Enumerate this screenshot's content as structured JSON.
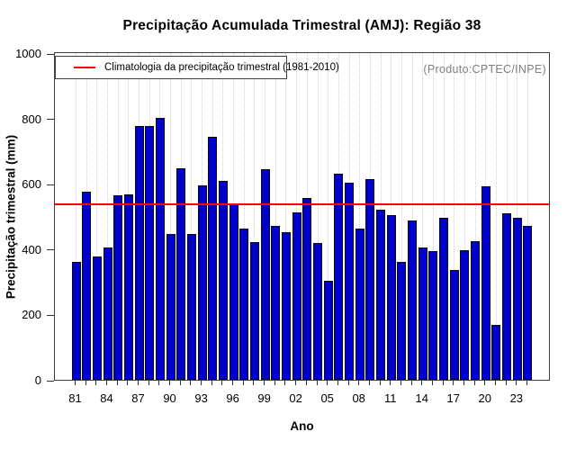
{
  "chart_data": {
    "type": "bar",
    "title": "Precipitação Acumulada Trimestral (AMJ): Região 38",
    "xlabel": "Ano",
    "ylabel": "Precipitação trimestral (mm)",
    "ylim": [
      0,
      1000
    ],
    "y_ticks": [
      0,
      200,
      400,
      600,
      800,
      1000
    ],
    "x_tick_labels": [
      "81",
      "84",
      "87",
      "90",
      "93",
      "96",
      "99",
      "02",
      "05",
      "08",
      "11",
      "14",
      "17",
      "20",
      "23"
    ],
    "categories": [
      "1981",
      "1982",
      "1983",
      "1984",
      "1985",
      "1986",
      "1987",
      "1988",
      "1989",
      "1990",
      "1991",
      "1992",
      "1993",
      "1994",
      "1995",
      "1996",
      "1997",
      "1998",
      "1999",
      "2000",
      "2001",
      "2002",
      "2003",
      "2004",
      "2005",
      "2006",
      "2007",
      "2008",
      "2009",
      "2010",
      "2011",
      "2012",
      "2013",
      "2014",
      "2015",
      "2016",
      "2017",
      "2018",
      "2019",
      "2020",
      "2021",
      "2022",
      "2023",
      "2024"
    ],
    "values": [
      362,
      575,
      378,
      406,
      564,
      567,
      777,
      777,
      802,
      447,
      648,
      447,
      596,
      743,
      608,
      538,
      464,
      422,
      645,
      472,
      453,
      512,
      557,
      418,
      302,
      631,
      602,
      462,
      613,
      520,
      505,
      362,
      487,
      405,
      395,
      496,
      337,
      396,
      423,
      592,
      167,
      509,
      497,
      470
    ],
    "bar_color": "#0000CC",
    "grid": "vertical-dotted",
    "legend_position": "top-left",
    "climatology_line": {
      "value": 543,
      "color": "#ff0000",
      "label": "Climatologia da precipitação trimestral (1981-2010)"
    },
    "annotation": "(Produto:CPTEC/INPE)"
  }
}
